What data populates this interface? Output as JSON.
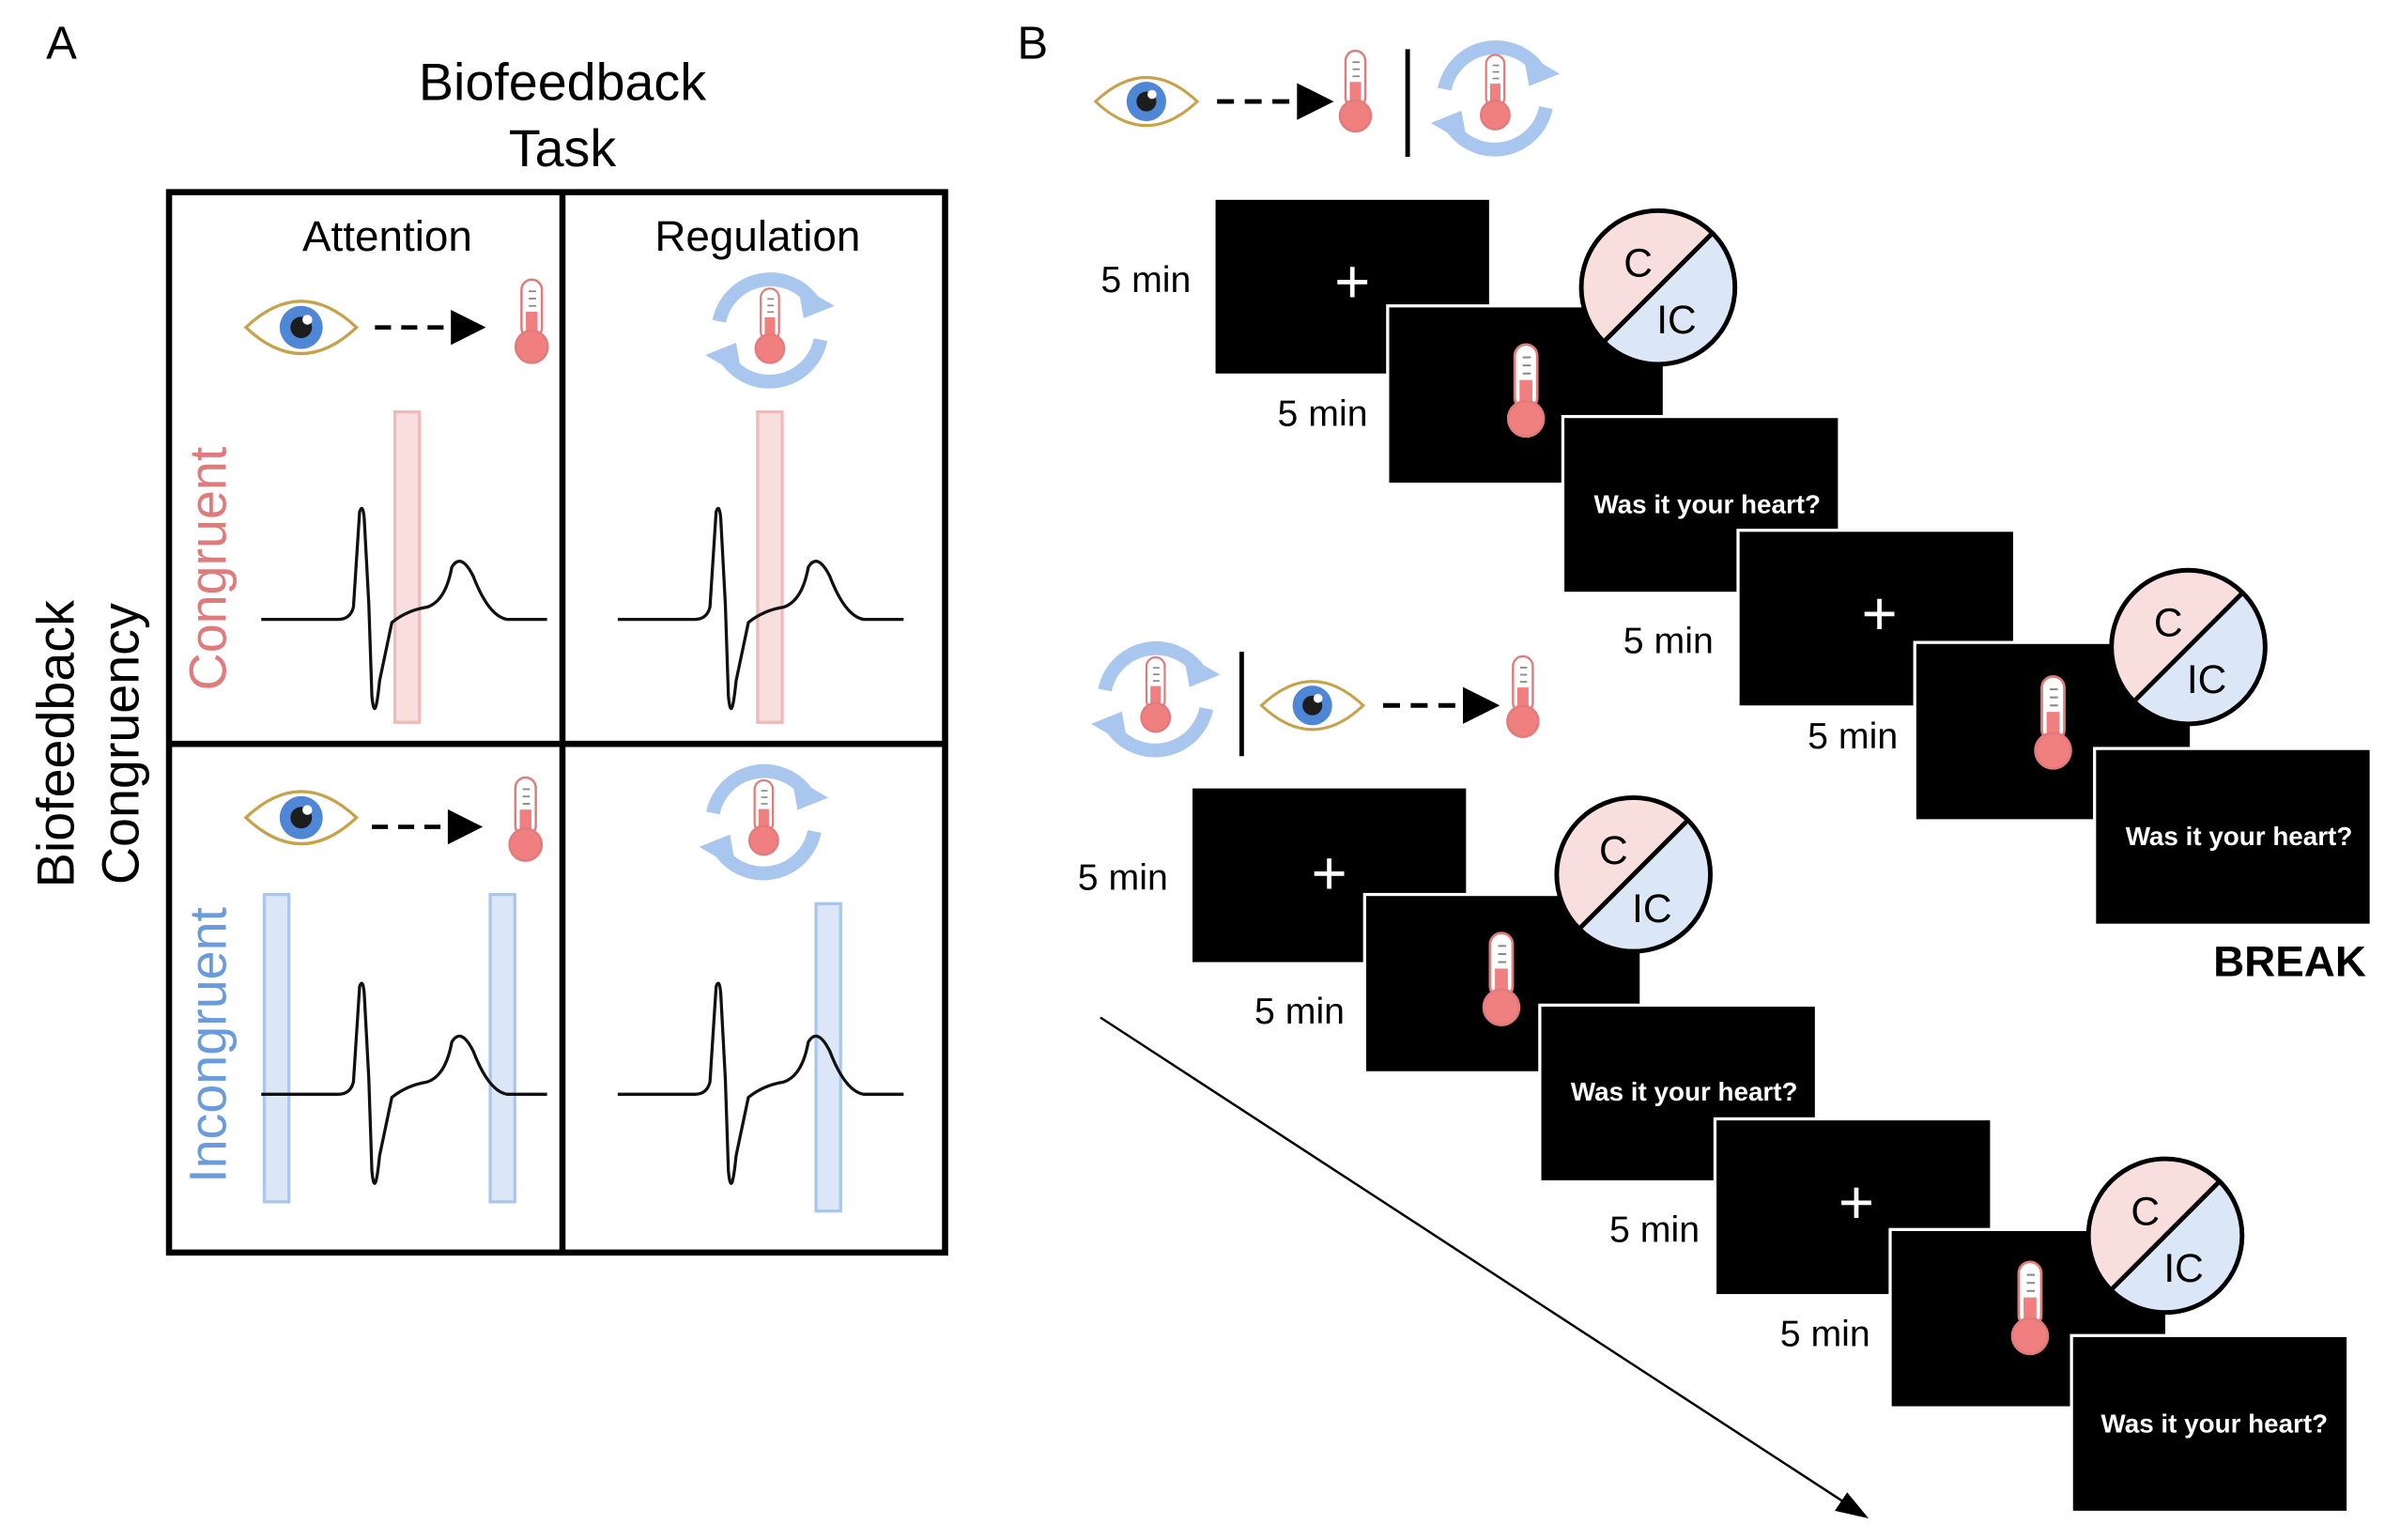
{
  "panel_a": {
    "label": "A",
    "task_title_line1": "Biofeedback",
    "task_title_line2": "Task",
    "congruency_title_line1": "Biofeedback",
    "congruency_title_line2": "Congruency",
    "col_attention": "Attention",
    "col_regulation": "Regulation",
    "row_congruent": "Congruent",
    "row_incongruent": "Incongruent"
  },
  "panel_b": {
    "label": "B",
    "duration": "5 min",
    "question": "Was it your heart?",
    "circle_top": "C",
    "circle_bottom": "IC",
    "break_label": "BREAK"
  },
  "colors": {
    "congruent": "#e07b7b",
    "incongruent": "#6a9bdc",
    "congruent_fill": "#f9dede",
    "incongruent_fill": "#dbe7f7",
    "thermometer_red": "#f07f7f",
    "eye_iris": "#4f86d6",
    "eye_outline": "#c8a24a",
    "cycle_arrow": "#a9c6ee"
  },
  "icons": [
    "eye-icon",
    "dashed-arrow-icon",
    "thermometer-icon",
    "cycle-arrows-icon",
    "fixation-cross-icon",
    "congruency-circle-icon"
  ]
}
